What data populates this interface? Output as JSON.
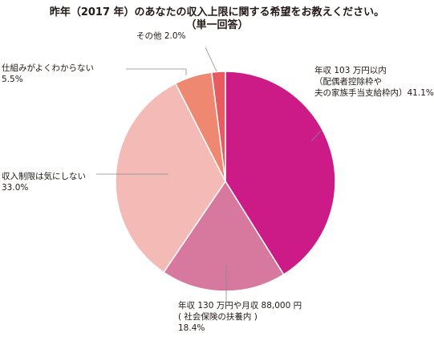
{
  "chart_data": {
    "type": "pie",
    "title_lines": [
      "昨年（2017 年）のあなたの収入上限に関する希望をお教えください。",
      "（単一回答）"
    ],
    "slices": [
      {
        "label_lines": [
          "年収 103 万円以内",
          "（配偶者控除枠や",
          "夫の家族手当支給枠内）41.1%"
        ],
        "value": 41.1,
        "color": "#cc1a87"
      },
      {
        "label_lines": [
          "年収 130 万円や月収 88,000 円",
          "( 社会保険の扶養内 )",
          "18.4%"
        ],
        "value": 18.4,
        "color": "#d7789f"
      },
      {
        "label_lines": [
          "収入制限は気にしない",
          "33.0%"
        ],
        "value": 33.0,
        "color": "#f3bab6"
      },
      {
        "label_lines": [
          "仕組みがよくわからない",
          "5.5%"
        ],
        "value": 5.5,
        "color": "#ee8870"
      },
      {
        "label_lines": [
          "その他 2.0%"
        ],
        "value": 2.0,
        "color": "#e85b62"
      }
    ],
    "start": "12 o'clock",
    "direction": "clockwise",
    "legend": "none"
  }
}
